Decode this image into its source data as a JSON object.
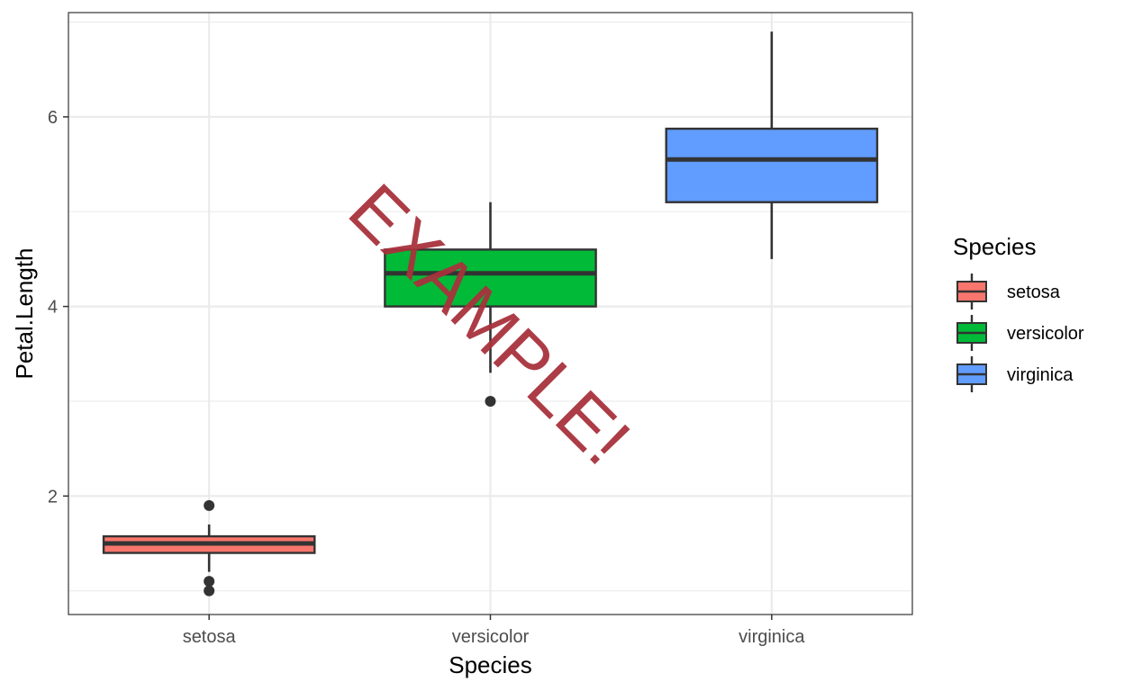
{
  "chart_data": {
    "type": "boxplot",
    "xlabel": "Species",
    "ylabel": "Petal.Length",
    "ylim": [
      0.75,
      7.1
    ],
    "y_ticks": [
      2,
      4,
      6
    ],
    "y_tick_labels": [
      "2",
      "4",
      "6"
    ],
    "y_minor_ticks": [
      1,
      3,
      5,
      7
    ],
    "grid": true,
    "categories": [
      "setosa",
      "versicolor",
      "virginica"
    ],
    "boxes": [
      {
        "category": "setosa",
        "fill": "#F8766D",
        "whisker_low": 1.2,
        "q1": 1.4,
        "median": 1.5,
        "q3": 1.575,
        "whisker_high": 1.7,
        "outliers": [
          1.0,
          1.1,
          1.9
        ]
      },
      {
        "category": "versicolor",
        "fill": "#00BA38",
        "whisker_low": 3.3,
        "q1": 4.0,
        "median": 4.35,
        "q3": 4.6,
        "whisker_high": 5.1,
        "outliers": [
          3.0
        ]
      },
      {
        "category": "virginica",
        "fill": "#619CFF",
        "whisker_low": 4.5,
        "q1": 5.1,
        "median": 5.55,
        "q3": 5.875,
        "whisker_high": 6.9,
        "outliers": []
      }
    ],
    "legend": {
      "title": "Species",
      "placement": "right",
      "items": [
        {
          "label": "setosa",
          "fill": "#F8766D"
        },
        {
          "label": "versicolor",
          "fill": "#00BA38"
        },
        {
          "label": "virginica",
          "fill": "#619CFF"
        }
      ]
    }
  },
  "watermark": {
    "text": "EXAMPLE!",
    "color": "#a8323c"
  }
}
